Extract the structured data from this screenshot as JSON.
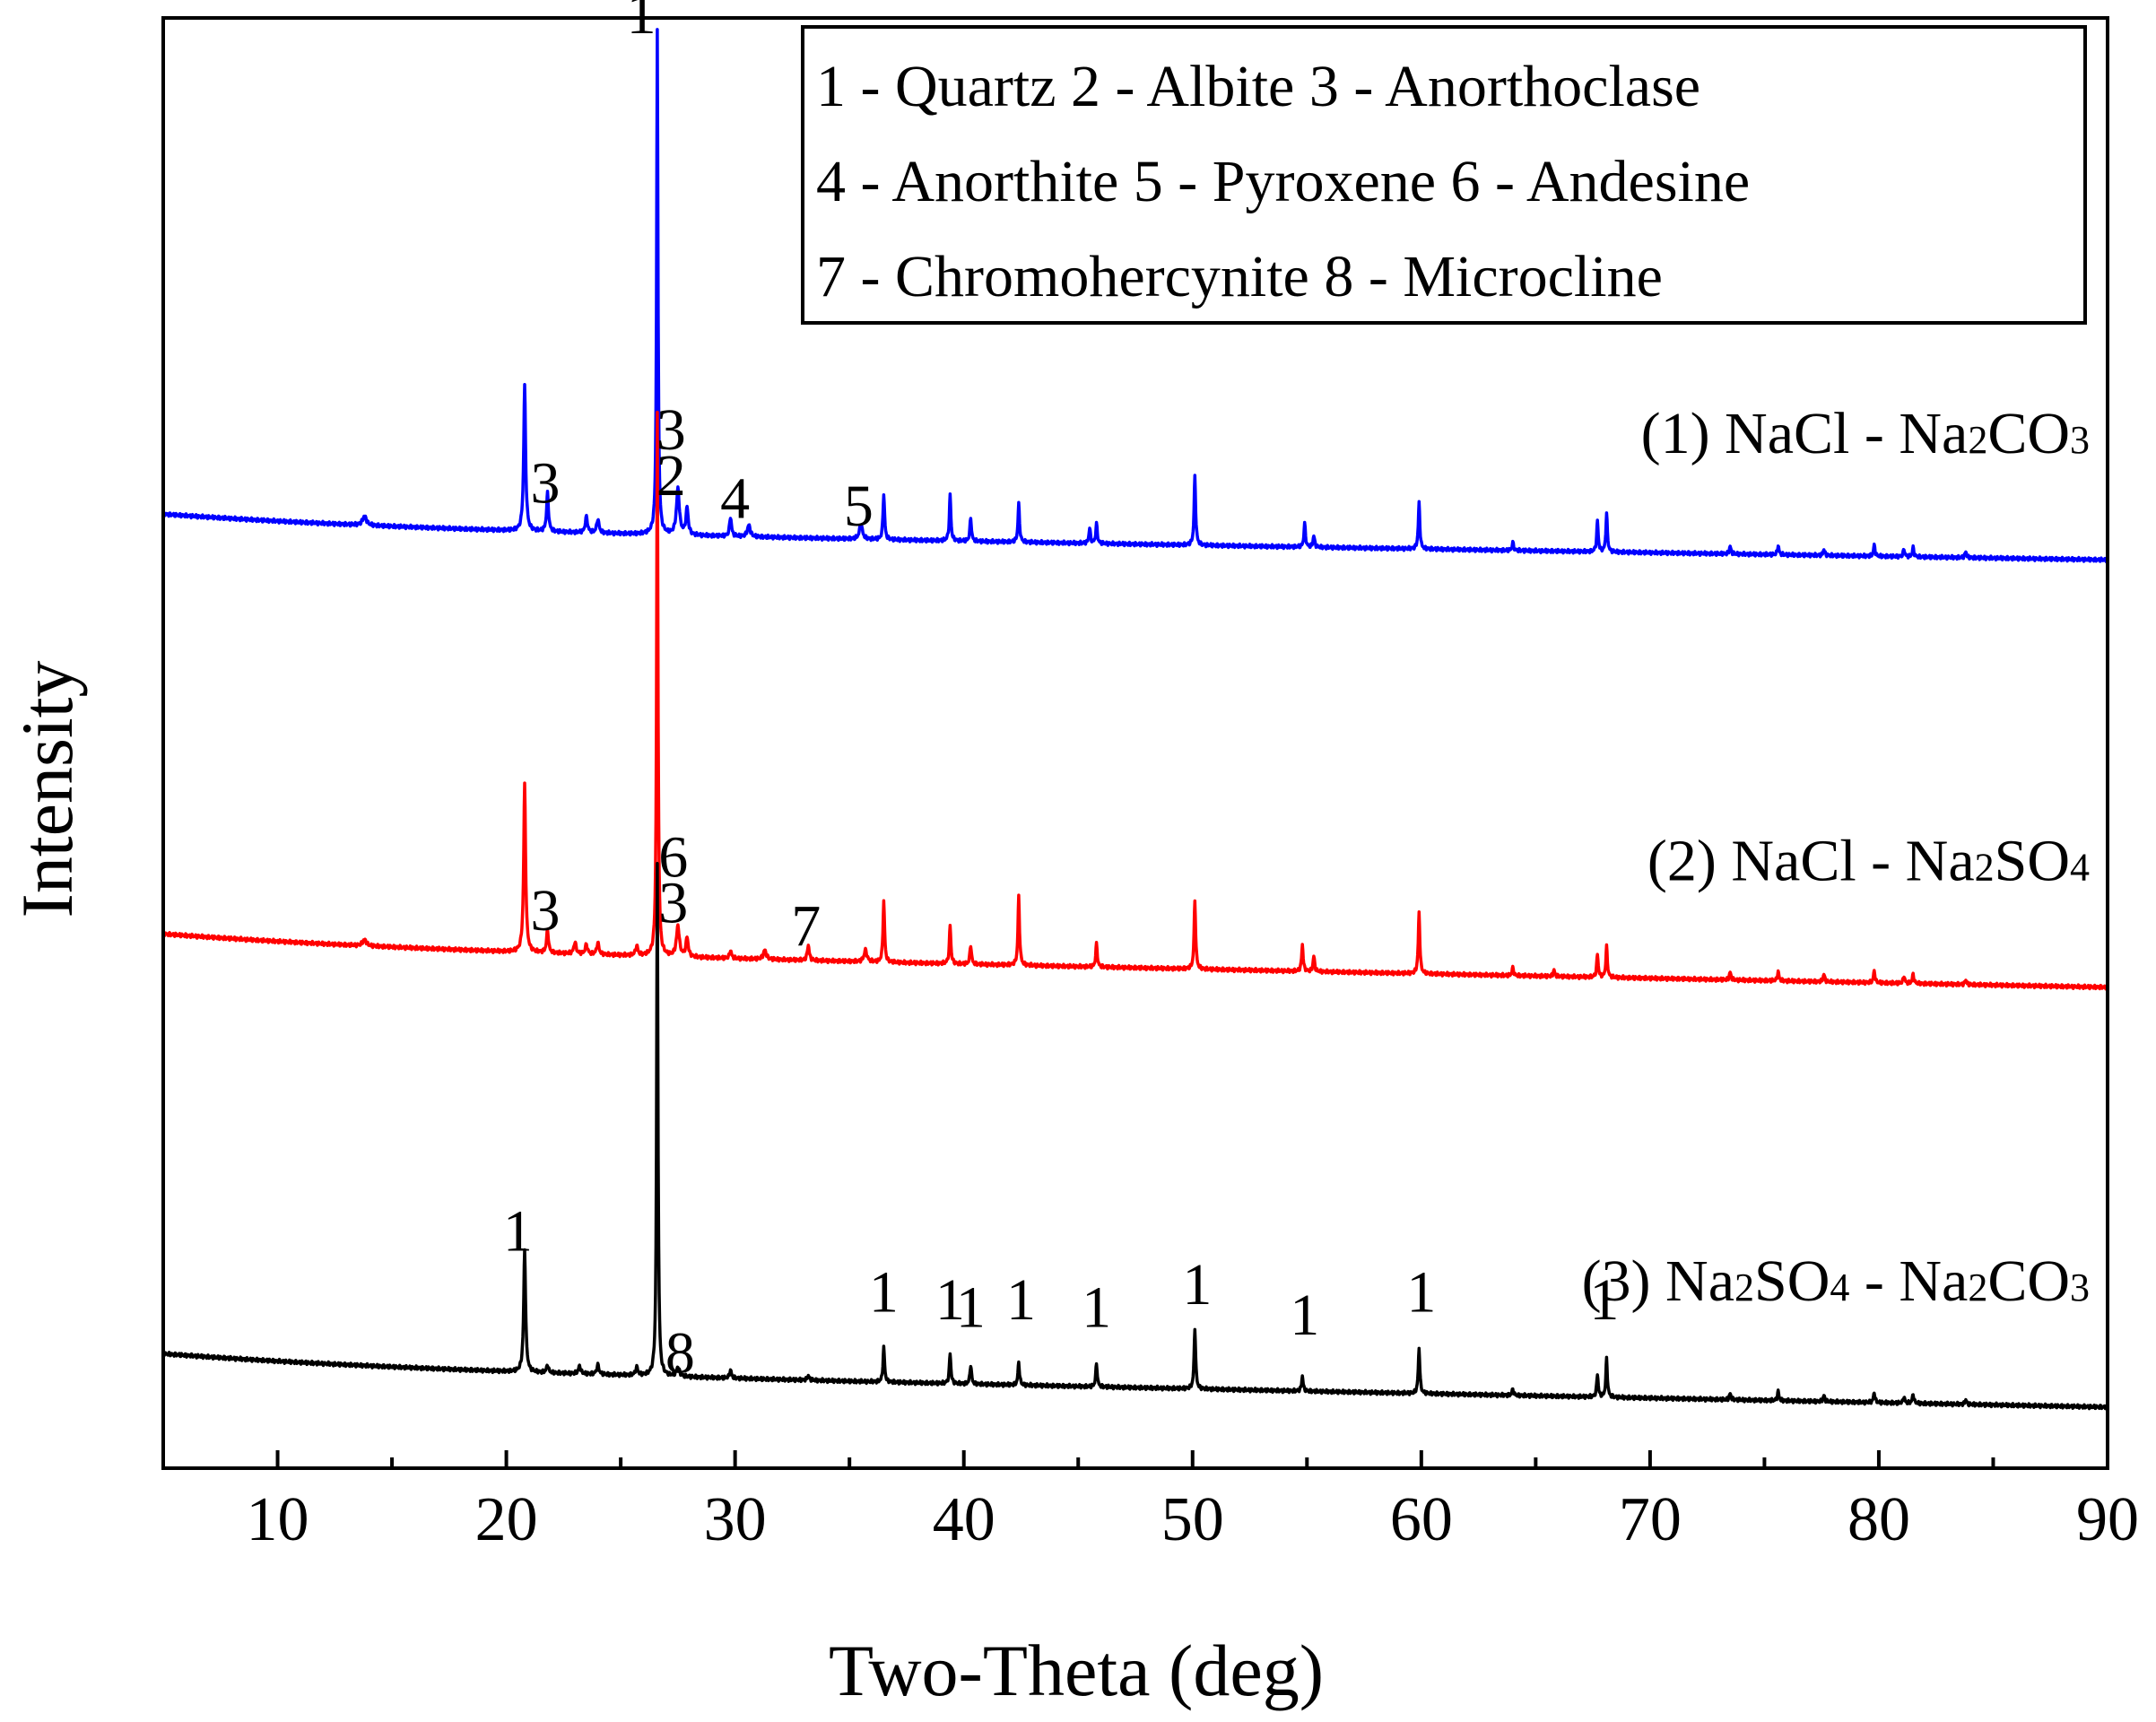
{
  "chart_data": {
    "type": "line",
    "title": "",
    "xlabel": "Two-Theta (deg)",
    "ylabel": "Intensity",
    "xlim": [
      5,
      90
    ],
    "ylim": [
      0,
      190
    ],
    "x_ticks": [
      "10",
      "20",
      "30",
      "40",
      "50",
      "60",
      "70",
      "80",
      "90"
    ],
    "x_tick_values": [
      10,
      20,
      30,
      40,
      50,
      60,
      70,
      80,
      90
    ],
    "legend": {
      "placement": "top-right",
      "lines": [
        "1 - Quartz  2 - Albite  3 - Anorthoclase",
        "4 - Anorthite  5 - Pyroxene  6 - Andesine",
        "7 - Chromohercynite  8 - Microcline"
      ]
    },
    "series": [
      {
        "name": "(1) NaCl - Na2CO3",
        "label_parts": [
          {
            "text": "(1) NaCl - Na",
            "sub": false
          },
          {
            "text": "2",
            "sub": true
          },
          {
            "text": "CO",
            "sub": false
          },
          {
            "text": "3",
            "sub": true
          }
        ],
        "color": "#0000ff",
        "baseline_start": 123,
        "baseline_end": 119,
        "peaks": [
          [
            13.8,
            1.2,
            0.2
          ],
          [
            20.8,
            19,
            0.1
          ],
          [
            21.8,
            5,
            0.1
          ],
          [
            23.5,
            2,
            0.12
          ],
          [
            24.0,
            1.8,
            0.12
          ],
          [
            26.6,
            66,
            0.07
          ],
          [
            27.5,
            6,
            0.15
          ],
          [
            27.9,
            3.5,
            0.12
          ],
          [
            29.8,
            2.5,
            0.1
          ],
          [
            30.6,
            1.5,
            0.15
          ],
          [
            35.5,
            2,
            0.15
          ],
          [
            36.5,
            6,
            0.08
          ],
          [
            39.4,
            6,
            0.08
          ],
          [
            40.3,
            3,
            0.08
          ],
          [
            42.4,
            5,
            0.08
          ],
          [
            45.5,
            2,
            0.08
          ],
          [
            45.8,
            2.5,
            0.08
          ],
          [
            50.1,
            9,
            0.08
          ],
          [
            54.9,
            3,
            0.08
          ],
          [
            55.3,
            1.5,
            0.08
          ],
          [
            59.9,
            6,
            0.08
          ],
          [
            64.0,
            1,
            0.08
          ],
          [
            67.7,
            4,
            0.08
          ],
          [
            68.1,
            5,
            0.08
          ],
          [
            73.5,
            1,
            0.08
          ],
          [
            75.6,
            1.2,
            0.08
          ],
          [
            77.6,
            0.8,
            0.08
          ],
          [
            79.8,
            1.4,
            0.08
          ],
          [
            81.1,
            1.0,
            0.08
          ],
          [
            81.5,
            1.2,
            0.08
          ],
          [
            83.8,
            0.8,
            0.08
          ]
        ],
        "annotations": [
          {
            "label": "1",
            "x": 25.9,
            "y": 188
          },
          {
            "label": "3",
            "x": 27.2,
            "y": 133.5
          },
          {
            "label": "3",
            "x": 21.7,
            "y": 126.5
          },
          {
            "label": "2",
            "x": 27.2,
            "y": 127.5
          },
          {
            "label": "4",
            "x": 30.0,
            "y": 124.5
          },
          {
            "label": "5",
            "x": 35.4,
            "y": 123.5
          }
        ]
      },
      {
        "name": "(2) NaCl - Na2SO4",
        "label_parts": [
          {
            "text": "(2) NaCl - Na",
            "sub": false
          },
          {
            "text": "2",
            "sub": true
          },
          {
            "text": "SO",
            "sub": false
          },
          {
            "text": "4",
            "sub": true
          }
        ],
        "color": "#ff0000",
        "baseline_start": 68,
        "baseline_end": 63,
        "peaks": [
          [
            13.8,
            0.8,
            0.2
          ],
          [
            20.8,
            22,
            0.1
          ],
          [
            21.8,
            3,
            0.1
          ],
          [
            23.0,
            1.5,
            0.12
          ],
          [
            23.5,
            1.2,
            0.12
          ],
          [
            24.0,
            1.5,
            0.12
          ],
          [
            25.7,
            1.2,
            0.12
          ],
          [
            26.6,
            71,
            0.07
          ],
          [
            27.5,
            4,
            0.15
          ],
          [
            27.9,
            2.5,
            0.12
          ],
          [
            29.8,
            1,
            0.1
          ],
          [
            31.3,
            1.2,
            0.15
          ],
          [
            33.2,
            2,
            0.1
          ],
          [
            35.7,
            1.5,
            0.15
          ],
          [
            36.5,
            8,
            0.08
          ],
          [
            39.4,
            5,
            0.08
          ],
          [
            40.3,
            2.5,
            0.08
          ],
          [
            42.4,
            9,
            0.08
          ],
          [
            45.8,
            3,
            0.08
          ],
          [
            50.1,
            9,
            0.08
          ],
          [
            54.8,
            3.5,
            0.08
          ],
          [
            55.3,
            2,
            0.08
          ],
          [
            59.9,
            8,
            0.08
          ],
          [
            64.0,
            1,
            0.08
          ],
          [
            65.8,
            0.8,
            0.08
          ],
          [
            67.7,
            3,
            0.08
          ],
          [
            68.1,
            4,
            0.08
          ],
          [
            73.5,
            1,
            0.08
          ],
          [
            75.6,
            1.2,
            0.08
          ],
          [
            77.6,
            1,
            0.08
          ],
          [
            79.8,
            1.5,
            0.08
          ],
          [
            81.1,
            1,
            0.08
          ],
          [
            81.5,
            1.2,
            0.08
          ],
          [
            83.8,
            0.6,
            0.08
          ]
        ],
        "annotations": [
          {
            "label": "6",
            "x": 27.3,
            "y": 77.5
          },
          {
            "label": "3",
            "x": 21.7,
            "y": 70.5
          },
          {
            "label": "3",
            "x": 27.3,
            "y": 71.5
          },
          {
            "label": "7",
            "x": 33.1,
            "y": 68.5
          }
        ]
      },
      {
        "name": "(3) Na2SO4 - Na2CO3",
        "label_parts": [
          {
            "text": "(3) Na",
            "sub": false
          },
          {
            "text": "2",
            "sub": true
          },
          {
            "text": "SO",
            "sub": false
          },
          {
            "text": "4",
            "sub": true
          },
          {
            "text": " - Na",
            "sub": false
          },
          {
            "text": "2",
            "sub": true
          },
          {
            "text": "CO",
            "sub": false
          },
          {
            "text": "3",
            "sub": true
          }
        ],
        "color": "#000000",
        "baseline_start": 13,
        "baseline_end": 8,
        "peaks": [
          [
            20.8,
            16,
            0.1
          ],
          [
            21.8,
            1,
            0.1
          ],
          [
            23.2,
            1,
            0.12
          ],
          [
            24.0,
            1.2,
            0.12
          ],
          [
            25.7,
            1,
            0.12
          ],
          [
            26.6,
            67,
            0.07
          ],
          [
            27.5,
            1.2,
            0.15
          ],
          [
            29.8,
            1,
            0.1
          ],
          [
            33.2,
            0.6,
            0.1
          ],
          [
            36.5,
            4.5,
            0.08
          ],
          [
            39.4,
            4,
            0.08
          ],
          [
            40.3,
            2.5,
            0.08
          ],
          [
            42.4,
            3,
            0.08
          ],
          [
            45.8,
            3,
            0.08
          ],
          [
            50.1,
            8,
            0.08
          ],
          [
            54.8,
            2,
            0.08
          ],
          [
            59.9,
            6,
            0.08
          ],
          [
            64.0,
            0.8,
            0.08
          ],
          [
            67.7,
            3,
            0.08
          ],
          [
            68.1,
            5,
            0.08
          ],
          [
            73.5,
            0.8,
            0.08
          ],
          [
            75.6,
            1.2,
            0.08
          ],
          [
            77.6,
            0.8,
            0.08
          ],
          [
            79.8,
            1.3,
            0.08
          ],
          [
            81.1,
            0.8,
            0.08
          ],
          [
            81.5,
            1.2,
            0.08
          ],
          [
            83.8,
            0.6,
            0.08
          ]
        ],
        "annotations": [
          {
            "label": "1",
            "x": 20.5,
            "y": 28.5
          },
          {
            "label": "8",
            "x": 27.6,
            "y": 12.5
          },
          {
            "label": "1",
            "x": 36.5,
            "y": 20.5
          },
          {
            "label": "1",
            "x": 39.4,
            "y": 19.5
          },
          {
            "label": "1",
            "x": 40.3,
            "y": 18.5
          },
          {
            "label": "1",
            "x": 42.5,
            "y": 19.5
          },
          {
            "label": "1",
            "x": 45.8,
            "y": 18.5
          },
          {
            "label": "1",
            "x": 50.2,
            "y": 21.5
          },
          {
            "label": "1",
            "x": 54.9,
            "y": 17.5
          },
          {
            "label": "1",
            "x": 60.0,
            "y": 20.5
          },
          {
            "label": "1",
            "x": 68.0,
            "y": 19.5
          }
        ]
      }
    ]
  }
}
